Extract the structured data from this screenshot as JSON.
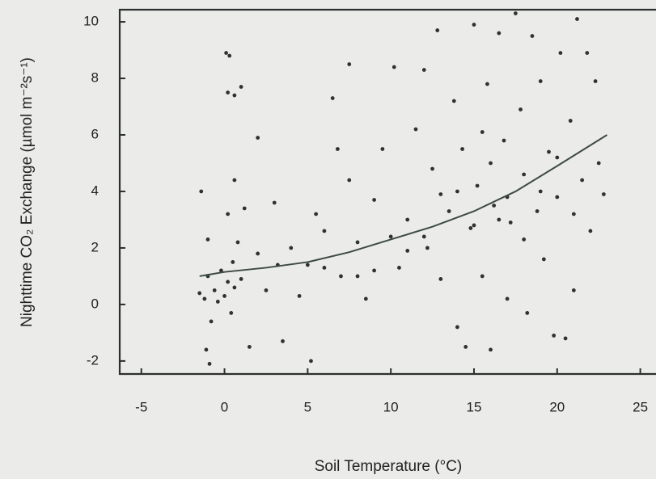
{
  "chart_data": {
    "type": "scatter",
    "x_label": "Soil Temperature (°C)",
    "y_label": "Nighttime CO₂ Exchange (µmol m⁻²s⁻¹)",
    "xlim": [
      -6.3,
      25.7
    ],
    "ylim": [
      -2.46,
      10.43
    ],
    "xticks": [
      -5,
      0,
      5,
      10,
      15,
      20,
      25
    ],
    "yticks": [
      -2,
      0,
      2,
      4,
      6,
      8,
      10
    ],
    "color": "#2f3330",
    "x": [
      -1.5,
      -1.2,
      -1,
      -0.8,
      -0.6,
      -0.4,
      -0.2,
      0,
      0.2,
      0.4,
      0.5,
      0.6,
      0.8,
      1,
      -1,
      -1.4,
      -1.1,
      -0.9,
      0.1,
      0.3,
      0.2,
      0.6,
      1,
      0.6,
      0.2,
      1.2,
      1.5,
      2,
      2,
      2.5,
      3,
      3.2,
      3.5,
      4,
      4.5,
      5,
      5.2,
      5.5,
      6,
      6.5,
      6.8,
      7,
      7.5,
      7.5,
      8,
      8.5,
      9,
      9.5,
      10,
      10.2,
      10.5,
      11,
      11.5,
      12,
      12.2,
      12.5,
      12.8,
      13,
      13.5,
      13.8,
      14,
      14.3,
      14.5,
      14.8,
      15,
      15.2,
      15.5,
      15.8,
      16,
      16.2,
      16.5,
      16.8,
      17,
      17.2,
      17.5,
      17.8,
      18,
      18.2,
      18.5,
      18.8,
      19,
      19.2,
      19.5,
      19.8,
      20,
      20.2,
      20.5,
      20.8,
      21,
      21.2,
      21.5,
      21.8,
      22,
      22.3,
      22.5,
      22.8,
      16,
      14,
      18,
      19,
      21,
      15,
      12,
      13,
      9,
      8,
      6,
      11,
      17,
      20,
      16.5,
      15.5
    ],
    "values": [
      0.4,
      0.2,
      1.0,
      -0.6,
      0.5,
      0.1,
      1.2,
      0.3,
      0.8,
      -0.3,
      1.5,
      0.6,
      2.2,
      0.9,
      2.3,
      4.0,
      -1.6,
      -2.1,
      8.9,
      8.8,
      7.5,
      7.4,
      7.7,
      4.4,
      3.2,
      3.4,
      -1.5,
      5.9,
      1.8,
      0.5,
      3.6,
      1.4,
      -1.3,
      2.0,
      0.3,
      1.4,
      -2.0,
      3.2,
      2.6,
      7.3,
      5.5,
      1.0,
      4.4,
      8.5,
      2.2,
      0.2,
      3.7,
      5.5,
      2.4,
      8.4,
      1.3,
      3.0,
      6.2,
      8.3,
      2.0,
      4.8,
      9.7,
      0.9,
      3.3,
      7.2,
      -0.8,
      5.5,
      -1.5,
      2.7,
      9.9,
      4.2,
      1.0,
      7.8,
      -1.6,
      3.5,
      9.6,
      5.8,
      0.2,
      2.9,
      10.3,
      6.9,
      4.6,
      -0.3,
      9.5,
      3.3,
      7.9,
      1.6,
      5.4,
      -1.1,
      3.8,
      8.9,
      -1.2,
      6.5,
      0.5,
      10.1,
      4.4,
      8.9,
      2.6,
      7.9,
      5.0,
      3.9,
      5,
      4,
      2.3,
      4,
      3.2,
      2.8,
      2.4,
      3.9,
      1.2,
      1.0,
      1.3,
      1.9,
      3.8,
      5.2,
      3.0,
      6.1
    ],
    "fit": {
      "color": "#3d4a45",
      "x": [
        -1.5,
        0,
        2.5,
        5,
        7.5,
        10,
        12.5,
        15,
        17.5,
        20,
        23
      ],
      "values": [
        1.0,
        1.15,
        1.3,
        1.5,
        1.85,
        2.3,
        2.75,
        3.3,
        4.0,
        4.9,
        6.0
      ]
    }
  }
}
